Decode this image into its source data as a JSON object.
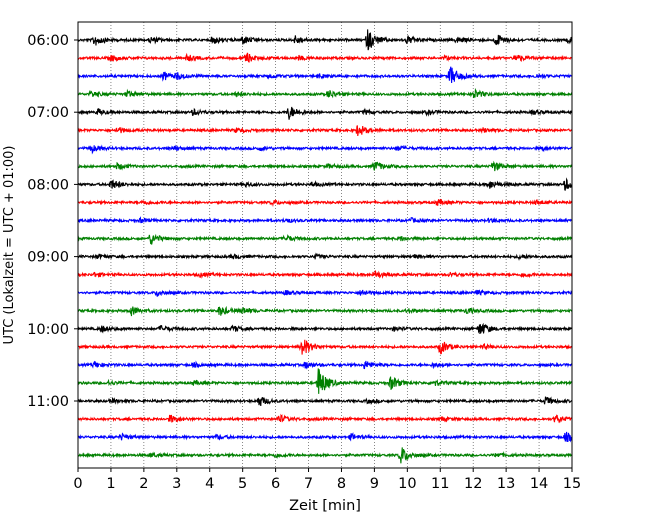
{
  "chart_data": {
    "type": "line",
    "title": "",
    "xlabel": "Zeit  [min]",
    "ylabel": "UTC (Lokalzeit = UTC + 01:00)",
    "xlim": [
      0,
      15
    ],
    "x_ticks": [
      "0",
      "1",
      "2",
      "3",
      "4",
      "5",
      "6",
      "7",
      "8",
      "9",
      "10",
      "11",
      "12",
      "13",
      "14",
      "15"
    ],
    "y_ticks": [
      "06:00",
      "07:00",
      "08:00",
      "09:00",
      "10:00",
      "11:00"
    ],
    "grid": "vertical dotted at each minute",
    "row_interval_min": 15,
    "row_colors": [
      "#000000",
      "#ff0000",
      "#0000ff",
      "#008000"
    ],
    "series": [
      {
        "start": "06:00",
        "events": [
          {
            "t": 0.5,
            "amp": 6
          },
          {
            "t": 2.2,
            "amp": 3
          },
          {
            "t": 4.1,
            "amp": 4
          },
          {
            "t": 5.0,
            "amp": 4
          },
          {
            "t": 6.6,
            "amp": 4
          },
          {
            "t": 8.8,
            "amp": 11
          },
          {
            "t": 10.0,
            "amp": 4
          },
          {
            "t": 11.5,
            "amp": 3
          },
          {
            "t": 12.7,
            "amp": 6
          },
          {
            "t": 14.9,
            "amp": 3
          }
        ]
      },
      {
        "start": "06:15",
        "events": [
          {
            "t": 1.0,
            "amp": 3
          },
          {
            "t": 3.3,
            "amp": 3
          },
          {
            "t": 5.1,
            "amp": 5
          },
          {
            "t": 6.7,
            "amp": 2
          },
          {
            "t": 11.1,
            "amp": 2
          },
          {
            "t": 13.3,
            "amp": 4
          }
        ]
      },
      {
        "start": "06:30",
        "events": [
          {
            "t": 2.6,
            "amp": 4
          },
          {
            "t": 3.0,
            "amp": 3
          },
          {
            "t": 5.8,
            "amp": 2
          },
          {
            "t": 7.3,
            "amp": 2
          },
          {
            "t": 11.3,
            "amp": 10
          },
          {
            "t": 13.9,
            "amp": 2
          }
        ]
      },
      {
        "start": "06:45",
        "events": [
          {
            "t": 0.4,
            "amp": 3
          },
          {
            "t": 1.5,
            "amp": 3
          },
          {
            "t": 4.8,
            "amp": 2
          },
          {
            "t": 7.6,
            "amp": 4
          },
          {
            "t": 12.0,
            "amp": 5
          }
        ]
      },
      {
        "start": "07:00",
        "events": [
          {
            "t": 0.6,
            "amp": 3
          },
          {
            "t": 3.5,
            "amp": 3
          },
          {
            "t": 6.4,
            "amp": 7
          },
          {
            "t": 8.7,
            "amp": 2
          },
          {
            "t": 10.6,
            "amp": 2
          },
          {
            "t": 13.8,
            "amp": 2
          }
        ]
      },
      {
        "start": "07:15",
        "events": [
          {
            "t": 1.2,
            "amp": 3
          },
          {
            "t": 4.8,
            "amp": 2
          },
          {
            "t": 8.5,
            "amp": 6
          },
          {
            "t": 12.3,
            "amp": 2
          }
        ]
      },
      {
        "start": "07:30",
        "events": [
          {
            "t": 0.4,
            "amp": 4
          },
          {
            "t": 2.9,
            "amp": 2
          },
          {
            "t": 5.5,
            "amp": 2
          },
          {
            "t": 9.7,
            "amp": 2
          },
          {
            "t": 14.1,
            "amp": 2
          }
        ]
      },
      {
        "start": "07:45",
        "events": [
          {
            "t": 1.2,
            "amp": 3
          },
          {
            "t": 7.6,
            "amp": 2
          },
          {
            "t": 9.0,
            "amp": 5
          },
          {
            "t": 12.6,
            "amp": 5
          }
        ]
      },
      {
        "start": "08:00",
        "events": [
          {
            "t": 1.0,
            "amp": 5
          },
          {
            "t": 5.1,
            "amp": 2
          },
          {
            "t": 7.1,
            "amp": 2
          },
          {
            "t": 12.5,
            "amp": 4
          },
          {
            "t": 14.8,
            "amp": 6
          }
        ]
      },
      {
        "start": "08:15",
        "events": [
          {
            "t": 2.0,
            "amp": 2
          },
          {
            "t": 5.9,
            "amp": 2
          },
          {
            "t": 10.9,
            "amp": 3
          },
          {
            "t": 13.9,
            "amp": 2
          }
        ]
      },
      {
        "start": "08:30",
        "events": [
          {
            "t": 1.9,
            "amp": 2
          },
          {
            "t": 6.3,
            "amp": 2
          },
          {
            "t": 10.1,
            "amp": 2
          },
          {
            "t": 12.5,
            "amp": 2
          }
        ]
      },
      {
        "start": "08:45",
        "events": [
          {
            "t": 2.2,
            "amp": 6
          },
          {
            "t": 6.3,
            "amp": 3
          },
          {
            "t": 9.8,
            "amp": 2
          }
        ]
      },
      {
        "start": "09:00",
        "events": [
          {
            "t": 0.6,
            "amp": 2
          },
          {
            "t": 4.7,
            "amp": 2
          },
          {
            "t": 7.2,
            "amp": 2
          },
          {
            "t": 10.2,
            "amp": 2
          },
          {
            "t": 13.4,
            "amp": 2
          }
        ]
      },
      {
        "start": "09:15",
        "events": [
          {
            "t": 0.5,
            "amp": 2
          },
          {
            "t": 3.7,
            "amp": 2
          },
          {
            "t": 9.0,
            "amp": 4
          },
          {
            "t": 11.3,
            "amp": 2
          },
          {
            "t": 13.5,
            "amp": 2
          }
        ]
      },
      {
        "start": "09:30",
        "events": [
          {
            "t": 2.4,
            "amp": 3
          },
          {
            "t": 6.3,
            "amp": 2
          },
          {
            "t": 8.6,
            "amp": 3
          },
          {
            "t": 12.1,
            "amp": 2
          }
        ]
      },
      {
        "start": "09:45",
        "events": [
          {
            "t": 1.6,
            "amp": 5
          },
          {
            "t": 4.3,
            "amp": 5
          },
          {
            "t": 5.0,
            "amp": 3
          },
          {
            "t": 10.0,
            "amp": 2
          },
          {
            "t": 11.8,
            "amp": 3
          }
        ]
      },
      {
        "start": "10:00",
        "events": [
          {
            "t": 0.7,
            "amp": 3
          },
          {
            "t": 2.5,
            "amp": 3
          },
          {
            "t": 4.7,
            "amp": 3
          },
          {
            "t": 9.6,
            "amp": 2
          },
          {
            "t": 12.2,
            "amp": 7
          }
        ]
      },
      {
        "start": "10:15",
        "events": [
          {
            "t": 6.8,
            "amp": 10
          },
          {
            "t": 11.0,
            "amp": 7
          },
          {
            "t": 12.3,
            "amp": 2
          }
        ]
      },
      {
        "start": "10:30",
        "events": [
          {
            "t": 0.5,
            "amp": 3
          },
          {
            "t": 3.5,
            "amp": 2
          },
          {
            "t": 6.9,
            "amp": 3
          },
          {
            "t": 8.7,
            "amp": 4
          },
          {
            "t": 10.8,
            "amp": 2
          }
        ]
      },
      {
        "start": "10:45",
        "events": [
          {
            "t": 0.9,
            "amp": 2
          },
          {
            "t": 3.5,
            "amp": 2
          },
          {
            "t": 7.3,
            "amp": 16
          },
          {
            "t": 9.5,
            "amp": 7
          },
          {
            "t": 10.8,
            "amp": 3
          }
        ]
      },
      {
        "start": "11:00",
        "events": [
          {
            "t": 1.0,
            "amp": 2
          },
          {
            "t": 5.5,
            "amp": 5
          },
          {
            "t": 8.8,
            "amp": 2
          },
          {
            "t": 14.2,
            "amp": 4
          }
        ]
      },
      {
        "start": "11:15",
        "events": [
          {
            "t": 2.8,
            "amp": 4
          },
          {
            "t": 6.1,
            "amp": 4
          },
          {
            "t": 11.0,
            "amp": 2
          },
          {
            "t": 14.5,
            "amp": 4
          }
        ]
      },
      {
        "start": "11:30",
        "events": [
          {
            "t": 1.3,
            "amp": 3
          },
          {
            "t": 4.2,
            "amp": 2
          },
          {
            "t": 8.3,
            "amp": 3
          },
          {
            "t": 14.8,
            "amp": 5
          }
        ]
      },
      {
        "start": "11:45",
        "events": [
          {
            "t": 2.2,
            "amp": 2
          },
          {
            "t": 6.0,
            "amp": 2
          },
          {
            "t": 9.8,
            "amp": 9
          },
          {
            "t": 12.7,
            "amp": 2
          }
        ]
      }
    ]
  }
}
